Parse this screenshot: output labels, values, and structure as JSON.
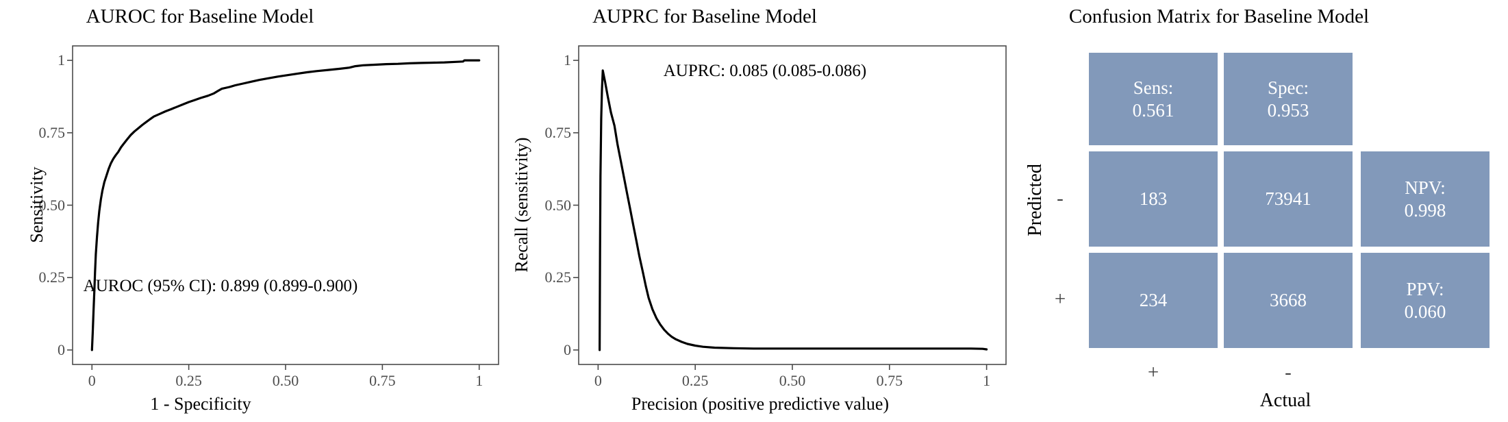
{
  "figure": {
    "background": "#ffffff",
    "text_color": "#000000",
    "tick_text_color": "#4d4d4d",
    "panel_border_color": "#4b4b4b"
  },
  "chart_data": [
    {
      "type": "line",
      "title": "AUROC for Baseline Model",
      "xlabel": "1 - Specificity",
      "ylabel": "Sensitivity",
      "annotation": "AUROC (95% CI): 0.899 (0.899-0.900)",
      "auroc": 0.899,
      "ci_low": 0.899,
      "ci_high": 0.9,
      "xlim": [
        0,
        1
      ],
      "ylim": [
        0,
        1
      ],
      "grid": "off",
      "legend": "none",
      "x_tick_values": [
        0,
        0.25,
        0.5,
        0.75,
        1
      ],
      "x_tick_labels": [
        "0",
        "0.25",
        "0.50",
        "0.75",
        "1"
      ],
      "y_tick_values": [
        0,
        0.25,
        0.5,
        0.75,
        1
      ],
      "y_tick_labels": [
        "0",
        "0.25",
        "0.50",
        "0.75",
        "1"
      ],
      "line_color": "#000000",
      "series": [
        {
          "name": "ROC curve",
          "points": [
            [
              0,
              0
            ],
            [
              0.002,
              0.06
            ],
            [
              0.004,
              0.13
            ],
            [
              0.006,
              0.2
            ],
            [
              0.008,
              0.27
            ],
            [
              0.01,
              0.33
            ],
            [
              0.013,
              0.39
            ],
            [
              0.016,
              0.44
            ],
            [
              0.019,
              0.48
            ],
            [
              0.023,
              0.52
            ],
            [
              0.027,
              0.55
            ],
            [
              0.032,
              0.58
            ],
            [
              0.037,
              0.6
            ],
            [
              0.043,
              0.625
            ],
            [
              0.049,
              0.645
            ],
            [
              0.055,
              0.66
            ],
            [
              0.061,
              0.672
            ],
            [
              0.068,
              0.684
            ],
            [
              0.075,
              0.7
            ],
            [
              0.082,
              0.712
            ],
            [
              0.09,
              0.726
            ],
            [
              0.1,
              0.742
            ],
            [
              0.11,
              0.755
            ],
            [
              0.12,
              0.766
            ],
            [
              0.13,
              0.777
            ],
            [
              0.14,
              0.787
            ],
            [
              0.15,
              0.797
            ],
            [
              0.16,
              0.806
            ],
            [
              0.175,
              0.815
            ],
            [
              0.19,
              0.824
            ],
            [
              0.205,
              0.832
            ],
            [
              0.22,
              0.84
            ],
            [
              0.235,
              0.848
            ],
            [
              0.25,
              0.856
            ],
            [
              0.265,
              0.863
            ],
            [
              0.28,
              0.87
            ],
            [
              0.3,
              0.878
            ],
            [
              0.315,
              0.886
            ],
            [
              0.325,
              0.894
            ],
            [
              0.335,
              0.902
            ],
            [
              0.355,
              0.908
            ],
            [
              0.37,
              0.914
            ],
            [
              0.39,
              0.92
            ],
            [
              0.41,
              0.926
            ],
            [
              0.43,
              0.932
            ],
            [
              0.455,
              0.938
            ],
            [
              0.48,
              0.944
            ],
            [
              0.505,
              0.949
            ],
            [
              0.53,
              0.954
            ],
            [
              0.555,
              0.959
            ],
            [
              0.58,
              0.963
            ],
            [
              0.61,
              0.967
            ],
            [
              0.64,
              0.971
            ],
            [
              0.665,
              0.975
            ],
            [
              0.68,
              0.98
            ],
            [
              0.7,
              0.983
            ],
            [
              0.73,
              0.985
            ],
            [
              0.76,
              0.987
            ],
            [
              0.79,
              0.988
            ],
            [
              0.82,
              0.99
            ],
            [
              0.85,
              0.991
            ],
            [
              0.88,
              0.992
            ],
            [
              0.91,
              0.993
            ],
            [
              0.94,
              0.995
            ],
            [
              0.958,
              0.996
            ],
            [
              0.962,
              1.0
            ],
            [
              1,
              1
            ]
          ]
        }
      ]
    },
    {
      "type": "line",
      "title": "AUPRC for Baseline Model",
      "xlabel": "Precision (positive predictive value)",
      "ylabel": "Recall (sensitivity)",
      "annotation": "AUPRC: 0.085 (0.085-0.086)",
      "auprc": 0.085,
      "ci_low": 0.085,
      "ci_high": 0.086,
      "xlim": [
        0,
        1
      ],
      "ylim": [
        0,
        1
      ],
      "grid": "off",
      "legend": "none",
      "x_tick_values": [
        0,
        0.25,
        0.5,
        0.75,
        1
      ],
      "x_tick_labels": [
        "0",
        "0.25",
        "0.50",
        "0.75",
        "1"
      ],
      "y_tick_values": [
        0,
        0.25,
        0.5,
        0.75,
        1
      ],
      "y_tick_labels": [
        "0",
        "0.25",
        "0.50",
        "0.75",
        "1"
      ],
      "line_color": "#000000",
      "series": [
        {
          "name": "Precision-Recall curve",
          "points": [
            [
              0.004,
              0
            ],
            [
              0.005,
              0.35
            ],
            [
              0.006,
              0.6
            ],
            [
              0.008,
              0.8
            ],
            [
              0.01,
              0.9
            ],
            [
              0.012,
              0.965
            ],
            [
              0.018,
              0.925
            ],
            [
              0.025,
              0.875
            ],
            [
              0.033,
              0.82
            ],
            [
              0.042,
              0.775
            ],
            [
              0.05,
              0.71
            ],
            [
              0.058,
              0.655
            ],
            [
              0.066,
              0.6
            ],
            [
              0.074,
              0.545
            ],
            [
              0.082,
              0.49
            ],
            [
              0.09,
              0.435
            ],
            [
              0.098,
              0.38
            ],
            [
              0.106,
              0.325
            ],
            [
              0.115,
              0.27
            ],
            [
              0.123,
              0.22
            ],
            [
              0.13,
              0.18
            ],
            [
              0.14,
              0.14
            ],
            [
              0.15,
              0.11
            ],
            [
              0.16,
              0.088
            ],
            [
              0.17,
              0.07
            ],
            [
              0.18,
              0.056
            ],
            [
              0.19,
              0.045
            ],
            [
              0.2,
              0.037
            ],
            [
              0.215,
              0.028
            ],
            [
              0.23,
              0.021
            ],
            [
              0.25,
              0.015
            ],
            [
              0.27,
              0.011
            ],
            [
              0.3,
              0.008
            ],
            [
              0.35,
              0.006
            ],
            [
              0.4,
              0.005
            ],
            [
              0.5,
              0.005
            ],
            [
              0.6,
              0.005
            ],
            [
              0.7,
              0.005
            ],
            [
              0.8,
              0.005
            ],
            [
              0.9,
              0.005
            ],
            [
              0.96,
              0.005
            ],
            [
              0.99,
              0.004
            ],
            [
              1.0,
              0.002
            ]
          ]
        }
      ]
    },
    {
      "type": "heatmap",
      "title": "Confusion Matrix for Baseline Model",
      "xlabel": "Actual",
      "ylabel": "Predicted",
      "x_tick_labels": [
        "+",
        "-"
      ],
      "y_tick_labels": [
        "-",
        "+"
      ],
      "tile_color": "#8299BA",
      "cell_text_color": "#ffffff",
      "cells": {
        "sens": {
          "lines": [
            "Sens:",
            "0.561"
          ]
        },
        "spec": {
          "lines": [
            "Spec:",
            "0.953"
          ]
        },
        "fn": {
          "lines": [
            "183"
          ]
        },
        "tn": {
          "lines": [
            "73941"
          ]
        },
        "npv": {
          "lines": [
            "NPV:",
            "0.998"
          ]
        },
        "tp": {
          "lines": [
            "234"
          ]
        },
        "fp": {
          "lines": [
            "3668"
          ]
        },
        "ppv": {
          "lines": [
            "PPV:",
            "0.060"
          ]
        }
      },
      "matrix_values": {
        "tp": 234,
        "fp": 3668,
        "fn": 183,
        "tn": 73941
      },
      "metrics": {
        "sensitivity": 0.561,
        "specificity": 0.953,
        "npv": 0.998,
        "ppv": 0.06
      }
    }
  ]
}
